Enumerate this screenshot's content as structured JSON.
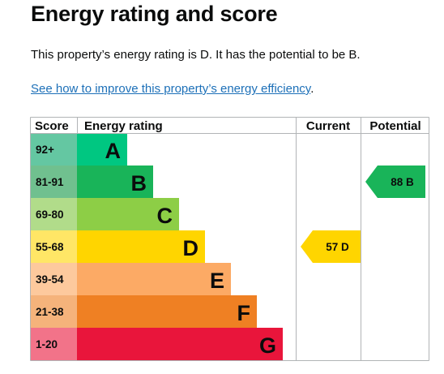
{
  "title": "Energy rating and score",
  "summary": "This property’s energy rating is D. It has the potential to be B.",
  "link": {
    "text": "See how to improve this property’s energy efficiency",
    "suffix": "."
  },
  "table": {
    "headers": {
      "score": "Score",
      "rating": "Energy rating",
      "current": "Current",
      "potential": "Potential"
    },
    "bands": [
      {
        "score": "92+",
        "letter": "A",
        "color": "#00c781",
        "score_bg": "#64c7a2"
      },
      {
        "score": "81-91",
        "letter": "B",
        "color": "#19b459",
        "score_bg": "#70c08f"
      },
      {
        "score": "69-80",
        "letter": "C",
        "color": "#8dce46",
        "score_bg": "#b1dc8a"
      },
      {
        "score": "55-68",
        "letter": "D",
        "color": "#ffd500",
        "score_bg": "#ffe666"
      },
      {
        "score": "39-54",
        "letter": "E",
        "color": "#fcaa65",
        "score_bg": "#fdc99d"
      },
      {
        "score": "21-38",
        "letter": "F",
        "color": "#ef8023",
        "score_bg": "#f5b37b"
      },
      {
        "score": "1-20",
        "letter": "G",
        "color": "#e9153b",
        "score_bg": "#f27389"
      }
    ],
    "current": {
      "value": "57",
      "letter": "D",
      "band_index": 3,
      "color": "#ffd500"
    },
    "potential": {
      "value": "88",
      "letter": "B",
      "band_index": 1,
      "color": "#19b459"
    }
  }
}
